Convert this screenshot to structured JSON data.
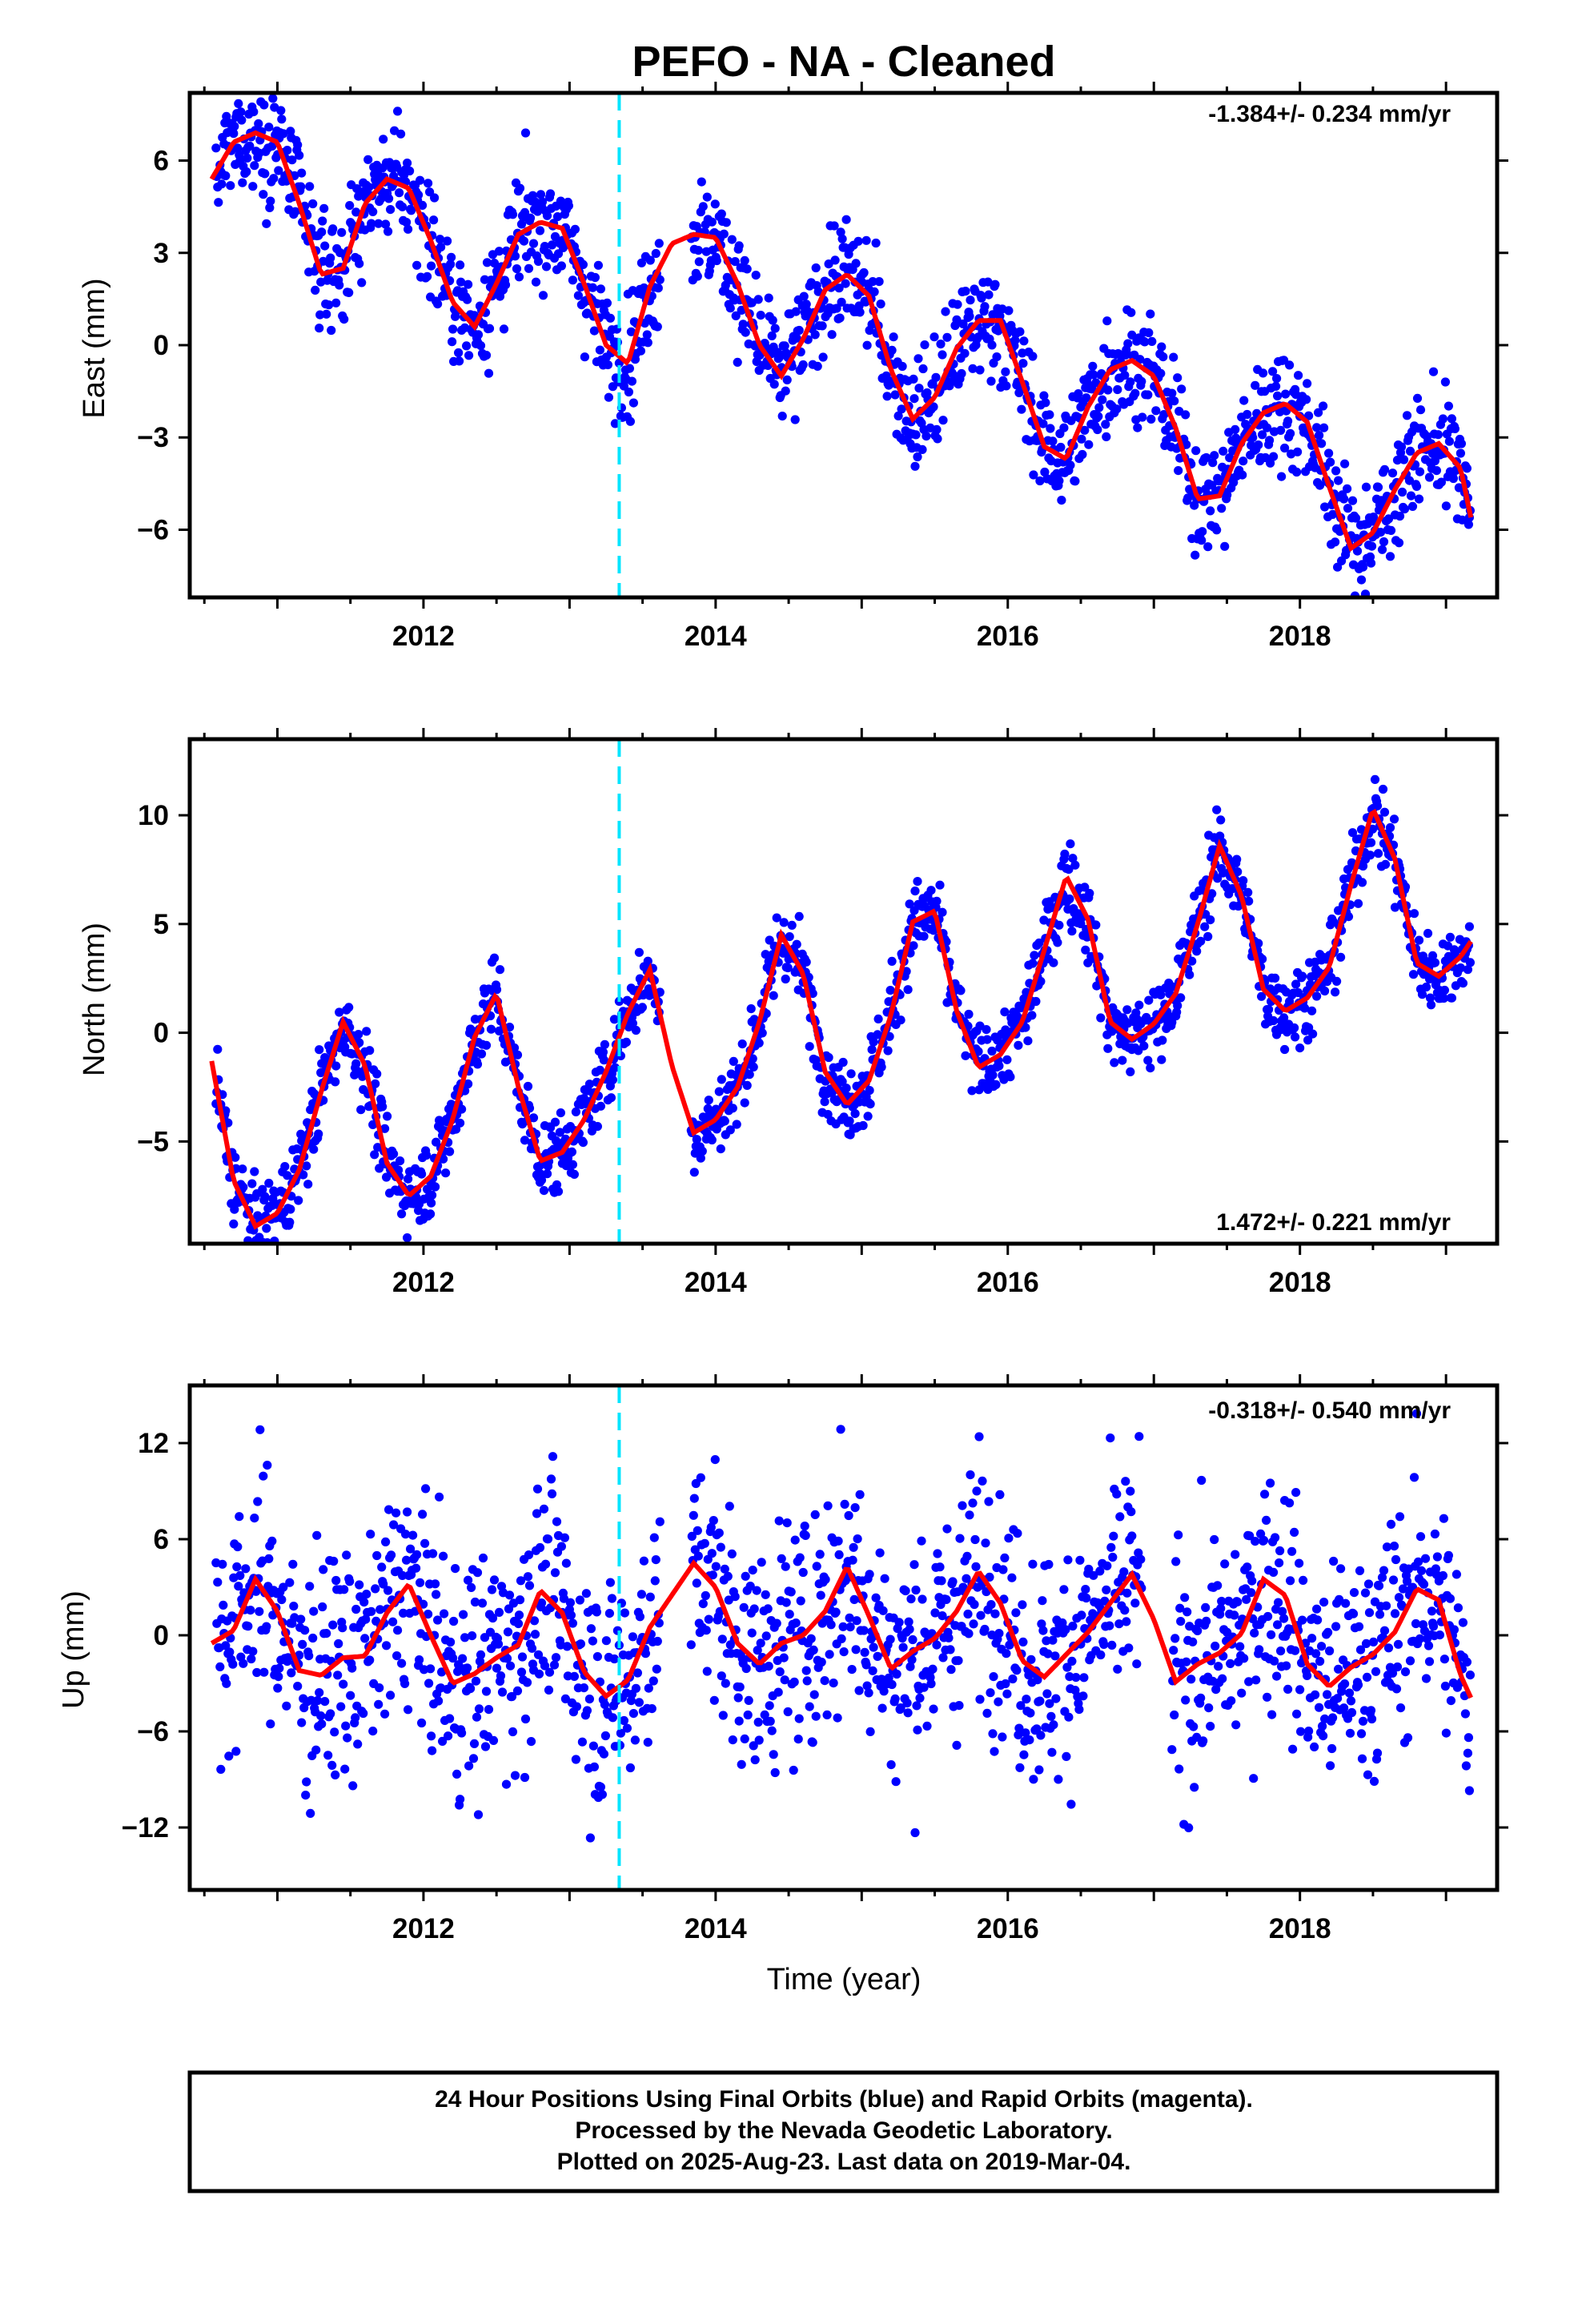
{
  "title": "PEFO  - NA - Cleaned",
  "colors": {
    "final_orbits": "#0000ff",
    "model": "#ff0000",
    "event_line": "#00e5ff",
    "frame": "#000000"
  },
  "footer": {
    "line1": "24 Hour Positions Using Final Orbits (blue) and Rapid Orbits (magenta).",
    "line2": "Processed by the Nevada Geodetic Laboratory.",
    "line3": "Plotted on 2025-Aug-23. Last data on 2019-Mar-04."
  },
  "chart_data": [
    {
      "type": "scatter",
      "name": "east",
      "ylabel": "East (mm)",
      "xlabel": "",
      "rate_label": "-1.384+/- 0.234 mm/yr",
      "xlim": [
        2010.4,
        2019.35
      ],
      "ylim": [
        -8.2,
        8.2
      ],
      "xticks": [
        2012,
        2014,
        2016,
        2018
      ],
      "yticks": [
        6,
        3,
        0,
        -3,
        -6
      ],
      "ytick_labels": [
        "6",
        "3",
        "0",
        "−3",
        "−6"
      ],
      "event_x": 2013.34,
      "data_start": 2010.58,
      "data_end": 2019.17,
      "gap": [
        2013.62,
        2013.83
      ],
      "scatter_sigma": 0.9,
      "model": {
        "x": [
          2010.55,
          2010.7,
          2010.85,
          2011.0,
          2011.15,
          2011.3,
          2011.45,
          2011.6,
          2011.75,
          2011.9,
          2012.05,
          2012.2,
          2012.35,
          2012.5,
          2012.65,
          2012.8,
          2012.95,
          2013.1,
          2013.25,
          2013.4,
          2013.55,
          2013.7,
          2013.85,
          2014.0,
          2014.15,
          2014.3,
          2014.45,
          2014.6,
          2014.75,
          2014.9,
          2015.05,
          2015.2,
          2015.35,
          2015.5,
          2015.65,
          2015.8,
          2015.95,
          2016.1,
          2016.25,
          2016.4,
          2016.55,
          2016.7,
          2016.85,
          2017.0,
          2017.15,
          2017.3,
          2017.45,
          2017.6,
          2017.75,
          2017.9,
          2018.05,
          2018.2,
          2018.35,
          2018.5,
          2018.65,
          2018.8,
          2018.95,
          2019.1,
          2019.17
        ],
        "y": [
          5.4,
          6.6,
          6.9,
          6.6,
          4.6,
          2.3,
          2.5,
          4.6,
          5.4,
          5.1,
          3.4,
          1.4,
          0.6,
          2.0,
          3.6,
          4.0,
          3.8,
          2.0,
          0.0,
          -0.6,
          1.9,
          3.3,
          3.6,
          3.5,
          2.0,
          0.0,
          -1.0,
          0.2,
          1.8,
          2.3,
          1.6,
          -0.8,
          -2.4,
          -1.7,
          -0.1,
          0.8,
          0.8,
          -1.2,
          -3.3,
          -3.7,
          -2.0,
          -0.8,
          -0.5,
          -1.0,
          -2.7,
          -5.0,
          -4.9,
          -3.2,
          -2.2,
          -1.9,
          -2.5,
          -4.6,
          -6.6,
          -6.1,
          -4.7,
          -3.5,
          -3.2,
          -4.0,
          -5.6
        ]
      }
    },
    {
      "type": "scatter",
      "name": "north",
      "ylabel": "North (mm)",
      "xlabel": "",
      "rate_label": "1.472+/- 0.221 mm/yr",
      "xlim": [
        2010.4,
        2019.35
      ],
      "ylim": [
        -9.7,
        13.5
      ],
      "xticks": [
        2012,
        2014,
        2016,
        2018
      ],
      "yticks": [
        10,
        5,
        0,
        -5
      ],
      "ytick_labels": [
        "10",
        "5",
        "0",
        "−5"
      ],
      "event_x": 2013.34,
      "data_start": 2010.58,
      "data_end": 2019.17,
      "gap": [
        2013.62,
        2013.83
      ],
      "scatter_sigma": 0.9,
      "model": {
        "x": [
          2010.55,
          2010.7,
          2010.85,
          2011.0,
          2011.15,
          2011.3,
          2011.45,
          2011.6,
          2011.75,
          2011.9,
          2012.05,
          2012.2,
          2012.35,
          2012.5,
          2012.65,
          2012.8,
          2012.95,
          2013.1,
          2013.25,
          2013.4,
          2013.55,
          2013.7,
          2013.85,
          2014.0,
          2014.15,
          2014.3,
          2014.45,
          2014.6,
          2014.75,
          2014.9,
          2015.05,
          2015.2,
          2015.35,
          2015.5,
          2015.65,
          2015.8,
          2015.95,
          2016.1,
          2016.25,
          2016.4,
          2016.55,
          2016.7,
          2016.85,
          2017.0,
          2017.15,
          2017.3,
          2017.45,
          2017.6,
          2017.75,
          2017.9,
          2018.05,
          2018.2,
          2018.35,
          2018.5,
          2018.65,
          2018.8,
          2018.95,
          2019.1,
          2019.17
        ],
        "y": [
          -1.3,
          -6.8,
          -8.9,
          -8.3,
          -6.3,
          -2.7,
          0.5,
          -1.5,
          -6.0,
          -7.5,
          -6.6,
          -4.0,
          -0.2,
          1.8,
          -2.5,
          -5.9,
          -5.5,
          -4.0,
          -1.8,
          0.9,
          2.9,
          -1.5,
          -4.6,
          -4.0,
          -2.5,
          0.5,
          4.5,
          2.7,
          -1.8,
          -3.3,
          -2.2,
          0.8,
          5.1,
          5.6,
          1.0,
          -1.6,
          -1.0,
          0.5,
          3.8,
          7.2,
          5.2,
          0.5,
          -0.3,
          0.4,
          1.8,
          5.0,
          8.6,
          6.3,
          2.0,
          1.0,
          1.6,
          3.0,
          6.8,
          10.3,
          8.0,
          3.2,
          2.6,
          3.5,
          4.2
        ]
      }
    },
    {
      "type": "scatter",
      "name": "up",
      "ylabel": "Up (mm)",
      "xlabel": "Time (year)",
      "rate_label": "-0.318+/- 0.540 mm/yr",
      "xlim": [
        2010.4,
        2019.35
      ],
      "ylim": [
        -15.9,
        15.6
      ],
      "xticks": [
        2012,
        2014,
        2016,
        2018
      ],
      "yticks": [
        12,
        6,
        0,
        -6,
        -12
      ],
      "ytick_labels": [
        "12",
        "6",
        "0",
        "−6",
        "−12"
      ],
      "event_x": 2013.34,
      "data_start": 2010.58,
      "data_end": 2019.17,
      "gaps": [
        [
          2013.62,
          2013.83
        ],
        [
          2016.92,
          2017.12
        ]
      ],
      "scatter_sigma": 3.6,
      "model": {
        "x": [
          2010.55,
          2010.7,
          2010.85,
          2011.0,
          2011.15,
          2011.3,
          2011.45,
          2011.6,
          2011.75,
          2011.9,
          2012.05,
          2012.2,
          2012.35,
          2012.5,
          2012.65,
          2012.8,
          2012.95,
          2013.1,
          2013.25,
          2013.4,
          2013.55,
          2013.7,
          2013.85,
          2014.0,
          2014.15,
          2014.3,
          2014.45,
          2014.6,
          2014.75,
          2014.9,
          2015.05,
          2015.2,
          2015.35,
          2015.5,
          2015.65,
          2015.8,
          2015.95,
          2016.1,
          2016.25,
          2016.4,
          2016.55,
          2016.7,
          2016.85,
          2017.0,
          2017.15,
          2017.3,
          2017.45,
          2017.6,
          2017.75,
          2017.9,
          2018.05,
          2018.2,
          2018.35,
          2018.5,
          2018.65,
          2018.8,
          2018.95,
          2019.1,
          2019.17
        ],
        "y": [
          -0.5,
          0.3,
          3.5,
          1.5,
          -2.2,
          -2.5,
          -1.4,
          -1.3,
          1.4,
          3.2,
          0.0,
          -3.0,
          -2.4,
          -1.4,
          -0.6,
          2.8,
          1.4,
          -2.3,
          -3.8,
          -2.8,
          0.5,
          2.5,
          4.5,
          3.0,
          -0.5,
          -1.8,
          -0.5,
          0.0,
          1.5,
          4.3,
          1.2,
          -2.1,
          -1.0,
          -0.2,
          1.5,
          4.0,
          2.0,
          -1.6,
          -2.6,
          -1.2,
          0.2,
          2.0,
          3.8,
          1.0,
          -2.9,
          -1.8,
          -1.1,
          0.1,
          3.5,
          2.5,
          -1.8,
          -3.2,
          -2.0,
          -1.2,
          0.2,
          2.9,
          2.2,
          -2.5,
          -3.9
        ]
      }
    }
  ]
}
